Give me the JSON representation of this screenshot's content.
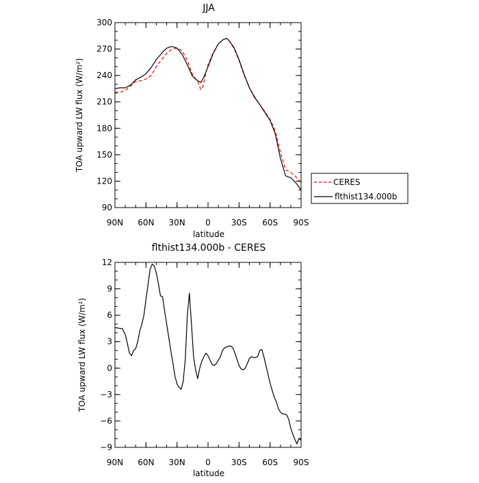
{
  "chart_data": [
    {
      "type": "line",
      "title": "JJA",
      "xlabel": "latitude",
      "ylabel": "TOA upward LW flux (W/m²)",
      "xlim": [
        90,
        -90
      ],
      "ylim": [
        90,
        300
      ],
      "x_ticks": [
        90,
        60,
        30,
        0,
        -30,
        -60,
        -90
      ],
      "x_tick_labels": [
        "90N",
        "60N",
        "30N",
        "0",
        "30S",
        "60S",
        "90S"
      ],
      "y_ticks": [
        90,
        120,
        150,
        180,
        210,
        240,
        270,
        300
      ],
      "y_tick_labels": [
        "90",
        "120",
        "150",
        "180",
        "210",
        "240",
        "270",
        "300"
      ],
      "legend_position": "outside-right",
      "series": [
        {
          "name": "CERES",
          "color": "#ff0000",
          "dash": true,
          "x": [
            90,
            85,
            80,
            75,
            70,
            65,
            60,
            55,
            50,
            45,
            40,
            35,
            30,
            25,
            20,
            15,
            10,
            7,
            5,
            3,
            0,
            -5,
            -10,
            -15,
            -18,
            -20,
            -25,
            -30,
            -35,
            -40,
            -45,
            -50,
            -55,
            -60,
            -65,
            -70,
            -75,
            -80,
            -85,
            -90
          ],
          "y": [
            221,
            221,
            223,
            228,
            233,
            234,
            236,
            240,
            250,
            258,
            265,
            270,
            271,
            268,
            257,
            241,
            233,
            224,
            227,
            238,
            252,
            266,
            276,
            281,
            282,
            280,
            271,
            257,
            240,
            226,
            216,
            207,
            199,
            190,
            177,
            153,
            133,
            130,
            125,
            118
          ]
        },
        {
          "name": "flthist134.000b",
          "color": "#000000",
          "dash": false,
          "x": [
            90,
            85,
            80,
            75,
            70,
            65,
            60,
            55,
            50,
            45,
            40,
            35,
            30,
            25,
            20,
            15,
            10,
            7,
            5,
            3,
            0,
            -5,
            -10,
            -15,
            -18,
            -20,
            -25,
            -30,
            -35,
            -40,
            -45,
            -50,
            -55,
            -60,
            -65,
            -70,
            -75,
            -80,
            -85,
            -90
          ],
          "y": [
            225,
            226,
            226,
            229,
            235,
            238,
            242,
            249,
            258,
            265,
            271,
            273,
            271,
            264,
            252,
            239,
            234,
            232,
            236,
            241,
            250,
            265,
            276,
            281,
            282,
            280,
            272,
            258,
            241,
            226,
            215,
            207,
            198,
            189,
            174,
            146,
            126,
            124,
            118,
            110
          ]
        }
      ]
    },
    {
      "type": "line",
      "title": "flthist134.000b - CERES",
      "xlabel": "latitude",
      "ylabel": "TOA upward LW flux (W/m²)",
      "xlim": [
        90,
        -90
      ],
      "ylim": [
        -9,
        12
      ],
      "x_ticks": [
        90,
        60,
        30,
        0,
        -30,
        -60,
        -90
      ],
      "x_tick_labels": [
        "90N",
        "60N",
        "30N",
        "0",
        "30S",
        "60S",
        "90S"
      ],
      "y_ticks": [
        -9,
        -6,
        -3,
        0,
        3,
        6,
        9,
        12
      ],
      "y_tick_labels": [
        "−9",
        "−6",
        "−3",
        "0",
        "3",
        "6",
        "9",
        "12"
      ],
      "series": [
        {
          "name": "",
          "color": "#000000",
          "dash": false,
          "x": [
            90,
            85,
            83,
            80,
            78,
            76,
            74,
            72,
            70,
            68,
            66,
            64,
            62,
            60,
            58,
            56,
            54,
            52,
            50,
            48,
            46,
            44,
            42,
            40,
            38,
            36,
            34,
            32,
            30,
            28,
            26,
            24,
            22,
            20,
            18,
            16,
            14,
            12,
            10,
            8,
            6,
            4,
            2,
            0,
            -2,
            -4,
            -6,
            -8,
            -10,
            -12,
            -14,
            -16,
            -18,
            -20,
            -22,
            -24,
            -26,
            -28,
            -30,
            -32,
            -34,
            -36,
            -38,
            -40,
            -42,
            -44,
            -46,
            -48,
            -50,
            -52,
            -54,
            -56,
            -58,
            -60,
            -62,
            -64,
            -66,
            -68,
            -70,
            -72,
            -74,
            -76,
            -78,
            -80,
            -82,
            -84,
            -86,
            -88,
            -90
          ],
          "y": [
            4.6,
            4.5,
            4.5,
            3.8,
            2.8,
            1.7,
            1.4,
            2.0,
            2.2,
            3.0,
            4.2,
            5.0,
            6.0,
            7.8,
            9.5,
            11.2,
            11.8,
            11.6,
            10.8,
            9.6,
            8.2,
            8.1,
            6.5,
            5.0,
            3.5,
            2.0,
            0.6,
            -0.9,
            -1.8,
            -2.2,
            -2.4,
            -1.5,
            1.0,
            6.0,
            8.5,
            5.0,
            1.3,
            -0.2,
            -1.2,
            0.0,
            0.8,
            1.3,
            1.7,
            1.4,
            0.9,
            0.4,
            0.3,
            0.5,
            0.9,
            1.3,
            2.0,
            2.3,
            2.4,
            2.5,
            2.5,
            2.3,
            1.7,
            1.0,
            0.3,
            -0.1,
            -0.2,
            0.0,
            0.5,
            1.1,
            1.3,
            1.2,
            1.2,
            1.3,
            2.0,
            2.1,
            1.3,
            0.3,
            -0.7,
            -1.7,
            -2.5,
            -3.3,
            -3.8,
            -4.6,
            -5.0,
            -5.2,
            -5.2,
            -5.3,
            -5.8,
            -6.8,
            -7.5,
            -8.1,
            -8.6,
            -8.0,
            -8.2
          ]
        }
      ]
    }
  ]
}
